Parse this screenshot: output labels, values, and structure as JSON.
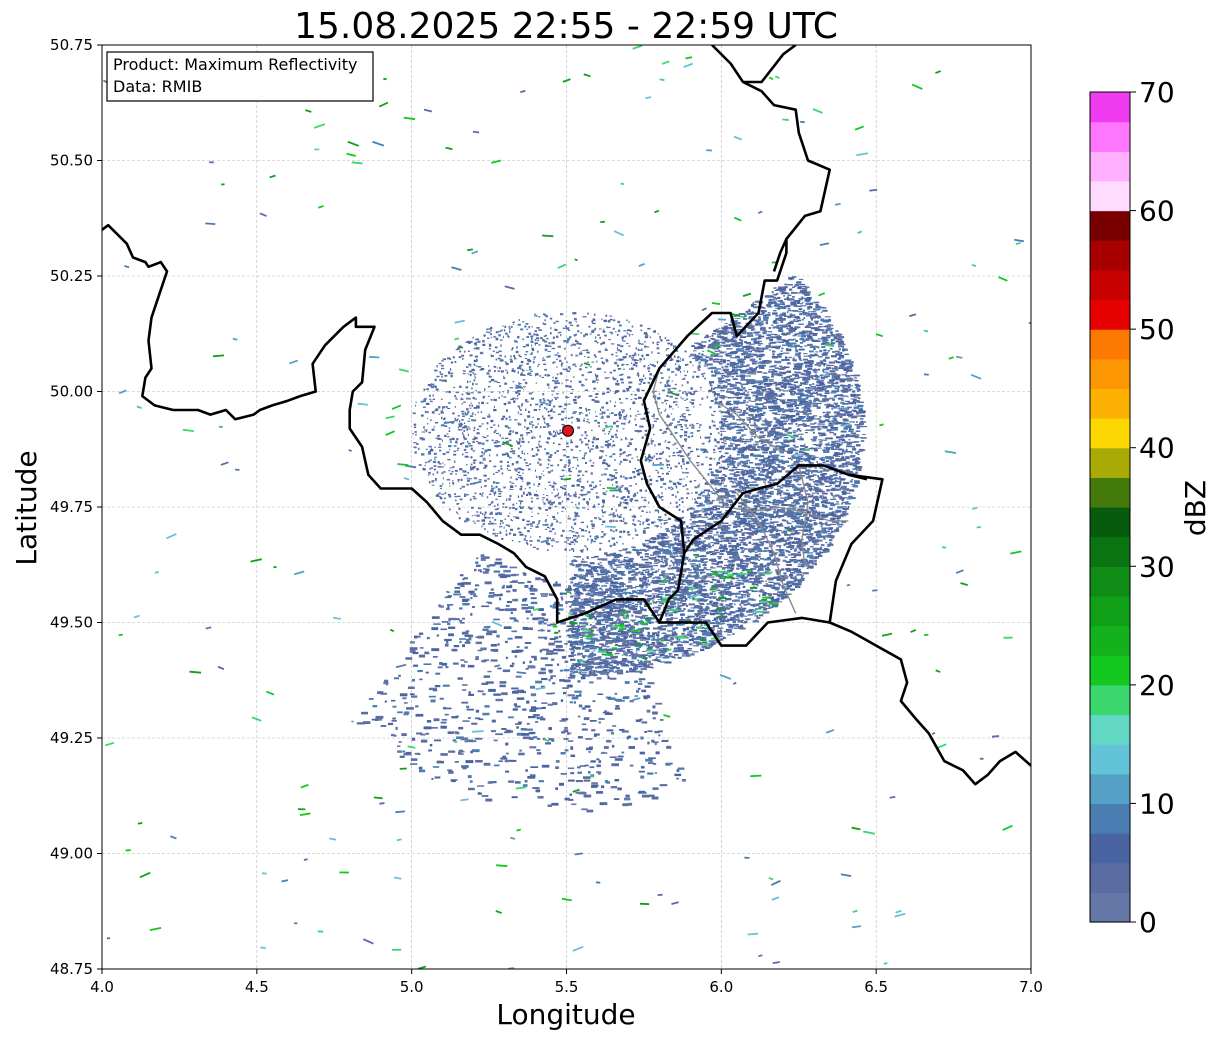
{
  "title": "15.08.2025 22:55 - 22:59 UTC",
  "xlabel": "Longitude",
  "ylabel": "Latitude",
  "info_box": {
    "product": "Product: Maximum Reflectivity",
    "source": "Data: RMIB"
  },
  "x_axis": {
    "range": [
      4.0,
      7.0
    ],
    "ticks": [
      4.0,
      4.5,
      5.0,
      5.5,
      6.0,
      6.5,
      7.0
    ],
    "tick_labels": [
      "4.0",
      "4.5",
      "5.0",
      "5.5",
      "6.0",
      "6.5",
      "7.0"
    ]
  },
  "y_axis": {
    "range": [
      48.75,
      50.75
    ],
    "ticks": [
      48.75,
      49.0,
      49.25,
      49.5,
      49.75,
      50.0,
      50.25,
      50.5,
      50.75
    ],
    "tick_labels": [
      "48.75",
      "49.00",
      "49.25",
      "49.50",
      "49.75",
      "50.00",
      "50.25",
      "50.50",
      "50.75"
    ]
  },
  "grid": true,
  "radar_site": {
    "lon": 5.505,
    "lat": 49.915,
    "color": "#e0141e"
  },
  "colorbar": {
    "label": "dBZ",
    "range": [
      0,
      70
    ],
    "ticks": [
      0,
      10,
      20,
      30,
      40,
      50,
      60,
      70
    ],
    "tick_labels": [
      "0",
      "10",
      "20",
      "30",
      "40",
      "50",
      "60",
      "70"
    ],
    "colors": [
      "#6477a6",
      "#5a6da3",
      "#4a64a1",
      "#4a7eb3",
      "#54a0c6",
      "#63c3d8",
      "#62d8c4",
      "#3ad66e",
      "#13c81f",
      "#13b11c",
      "#0fa018",
      "#0e8c15",
      "#0a7413",
      "#065c0c",
      "#447a0c",
      "#a8aa06",
      "#fcd702",
      "#fcb102",
      "#fc9602",
      "#fc7a02",
      "#e60000",
      "#c70000",
      "#a80000",
      "#7a0000",
      "#ffdcff",
      "#ffb0ff",
      "#ff76ff",
      "#f03cf0"
    ]
  },
  "borders": {
    "national": [
      [
        [
          4.0,
          50.35
        ],
        [
          4.02,
          50.36
        ],
        [
          4.05,
          50.34
        ],
        [
          4.08,
          50.32
        ],
        [
          4.1,
          50.29
        ],
        [
          4.14,
          50.28
        ],
        [
          4.15,
          50.27
        ],
        [
          4.19,
          50.28
        ],
        [
          4.21,
          50.26
        ],
        [
          4.18,
          50.2
        ],
        [
          4.16,
          50.16
        ],
        [
          4.15,
          50.11
        ],
        [
          4.16,
          50.05
        ],
        [
          4.14,
          50.03
        ],
        [
          4.13,
          49.99
        ],
        [
          4.17,
          49.97
        ],
        [
          4.23,
          49.96
        ],
        [
          4.31,
          49.96
        ],
        [
          4.35,
          49.95
        ],
        [
          4.4,
          49.96
        ],
        [
          4.43,
          49.94
        ],
        [
          4.49,
          49.95
        ],
        [
          4.51,
          49.96
        ],
        [
          4.55,
          49.97
        ],
        [
          4.6,
          49.98
        ],
        [
          4.64,
          49.99
        ],
        [
          4.69,
          50.0
        ],
        [
          4.68,
          50.06
        ],
        [
          4.72,
          50.1
        ],
        [
          4.78,
          50.14
        ],
        [
          4.82,
          50.16
        ],
        [
          4.82,
          50.14
        ],
        [
          4.88,
          50.14
        ],
        [
          4.85,
          50.09
        ],
        [
          4.84,
          50.02
        ],
        [
          4.81,
          50.0
        ],
        [
          4.8,
          49.96
        ],
        [
          4.8,
          49.92
        ],
        [
          4.84,
          49.88
        ],
        [
          4.86,
          49.82
        ],
        [
          4.9,
          49.79
        ],
        [
          5.0,
          49.79
        ],
        [
          5.05,
          49.76
        ],
        [
          5.1,
          49.72
        ],
        [
          5.16,
          49.69
        ],
        [
          5.22,
          49.69
        ],
        [
          5.28,
          49.67
        ],
        [
          5.33,
          49.65
        ],
        [
          5.37,
          49.62
        ],
        [
          5.43,
          49.6
        ],
        [
          5.47,
          49.55
        ],
        [
          5.47,
          49.5
        ],
        [
          5.56,
          49.52
        ],
        [
          5.66,
          49.55
        ],
        [
          5.75,
          49.55
        ],
        [
          5.8,
          49.5
        ],
        [
          5.83,
          49.55
        ],
        [
          5.86,
          49.57
        ],
        [
          5.88,
          49.65
        ],
        [
          5.87,
          49.72
        ],
        [
          5.8,
          49.75
        ],
        [
          5.76,
          49.8
        ],
        [
          5.74,
          49.85
        ],
        [
          5.77,
          49.92
        ],
        [
          5.75,
          49.98
        ],
        [
          5.8,
          50.05
        ],
        [
          5.89,
          50.12
        ],
        [
          5.97,
          50.17
        ],
        [
          6.03,
          50.17
        ],
        [
          6.05,
          50.12
        ],
        [
          6.12,
          50.17
        ],
        [
          6.14,
          50.24
        ],
        [
          6.18,
          50.24
        ],
        [
          6.21,
          50.3
        ],
        [
          6.21,
          50.33
        ],
        [
          6.27,
          50.38
        ],
        [
          6.32,
          50.39
        ],
        [
          6.35,
          50.48
        ],
        [
          6.28,
          50.5
        ],
        [
          6.25,
          50.56
        ],
        [
          6.24,
          50.61
        ],
        [
          6.17,
          50.62
        ],
        [
          6.13,
          50.65
        ],
        [
          6.07,
          50.67
        ],
        [
          6.03,
          50.71
        ],
        [
          5.97,
          50.75
        ]
      ],
      [
        [
          5.88,
          49.65
        ],
        [
          5.91,
          49.68
        ],
        [
          6.0,
          49.72
        ],
        [
          6.07,
          49.78
        ],
        [
          6.12,
          49.79
        ],
        [
          6.18,
          49.8
        ],
        [
          6.25,
          49.84
        ],
        [
          6.33,
          49.84
        ],
        [
          6.41,
          49.82
        ],
        [
          6.52,
          49.81
        ],
        [
          6.49,
          49.72
        ],
        [
          6.42,
          49.67
        ],
        [
          6.37,
          49.59
        ],
        [
          6.35,
          49.5
        ],
        [
          6.26,
          49.51
        ],
        [
          6.15,
          49.5
        ],
        [
          6.08,
          49.45
        ],
        [
          6.0,
          49.45
        ],
        [
          5.95,
          49.5
        ],
        [
          5.9,
          49.5
        ],
        [
          5.8,
          49.5
        ]
      ],
      [
        [
          6.35,
          49.5
        ],
        [
          6.42,
          49.48
        ],
        [
          6.5,
          49.45
        ],
        [
          6.58,
          49.42
        ],
        [
          6.6,
          49.37
        ],
        [
          6.58,
          49.33
        ],
        [
          6.63,
          49.29
        ],
        [
          6.67,
          49.26
        ],
        [
          6.72,
          49.2
        ],
        [
          6.78,
          49.18
        ],
        [
          6.82,
          49.15
        ],
        [
          6.86,
          49.17
        ],
        [
          6.9,
          49.2
        ],
        [
          6.95,
          49.22
        ],
        [
          7.0,
          49.19
        ]
      ],
      [
        [
          6.07,
          50.67
        ],
        [
          6.13,
          50.67
        ],
        [
          6.2,
          50.73
        ],
        [
          6.24,
          50.75
        ]
      ],
      [
        [
          6.21,
          50.33
        ],
        [
          6.19,
          50.3
        ],
        [
          6.17,
          50.26
        ]
      ],
      [
        [
          6.41,
          49.82
        ],
        [
          6.47,
          49.81
        ]
      ]
    ],
    "regional": [
      [
        [
          5.8,
          50.05
        ],
        [
          5.78,
          50.0
        ],
        [
          5.8,
          49.95
        ],
        [
          5.85,
          49.9
        ],
        [
          5.9,
          49.85
        ],
        [
          5.96,
          49.8
        ],
        [
          6.02,
          49.75
        ],
        [
          6.1,
          49.74
        ],
        [
          6.18,
          49.75
        ],
        [
          6.26,
          49.74
        ],
        [
          6.35,
          49.72
        ],
        [
          6.41,
          49.72
        ]
      ],
      [
        [
          5.98,
          49.98
        ],
        [
          6.05,
          49.95
        ],
        [
          6.12,
          49.9
        ],
        [
          6.2,
          49.87
        ]
      ],
      [
        [
          6.05,
          49.78
        ],
        [
          6.12,
          49.72
        ],
        [
          6.17,
          49.65
        ],
        [
          6.2,
          49.58
        ],
        [
          6.24,
          49.52
        ]
      ],
      [
        [
          6.25,
          49.84
        ],
        [
          6.28,
          49.76
        ],
        [
          6.26,
          49.68
        ],
        [
          6.27,
          49.62
        ]
      ]
    ]
  }
}
